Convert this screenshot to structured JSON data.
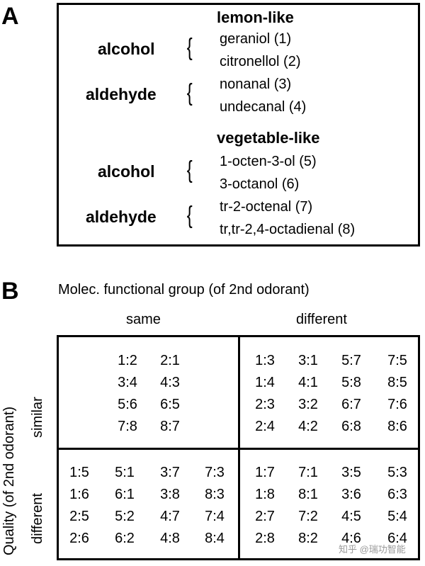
{
  "panelA": {
    "letter": "A",
    "groups": [
      {
        "heading": "lemon-like",
        "classes": [
          {
            "class": "alcohol",
            "compounds": [
              "geraniol (1)",
              "citronellol (2)"
            ]
          },
          {
            "class": "aldehyde",
            "compounds": [
              "nonanal (3)",
              "undecanal (4)"
            ]
          }
        ]
      },
      {
        "heading": "vegetable-like",
        "classes": [
          {
            "class": "alcohol",
            "compounds": [
              "1-octen-3-ol (5)",
              "3-octanol (6)"
            ]
          },
          {
            "class": "aldehyde",
            "compounds": [
              "tr-2-octenal (7)",
              "tr,tr-2,4-octadienal (8)"
            ]
          }
        ]
      }
    ],
    "brace": "{"
  },
  "panelB": {
    "letter": "B",
    "top_title": "Molec. functional group (of 2nd odorant)",
    "col_headers": [
      "same",
      "different"
    ],
    "left_title": "Quality (of 2nd odorant)",
    "row_headers": [
      "similar",
      "different"
    ],
    "cells": {
      "similar_same": [
        [
          "1:2",
          "2:1"
        ],
        [
          "3:4",
          "4:3"
        ],
        [
          "5:6",
          "6:5"
        ],
        [
          "7:8",
          "8:7"
        ]
      ],
      "similar_different": [
        [
          "1:3",
          "3:1",
          "5:7",
          "7:5"
        ],
        [
          "1:4",
          "4:1",
          "5:8",
          "8:5"
        ],
        [
          "2:3",
          "3:2",
          "6:7",
          "7:6"
        ],
        [
          "2:4",
          "4:2",
          "6:8",
          "8:6"
        ]
      ],
      "different_same": [
        [
          "1:5",
          "5:1",
          "3:7",
          "7:3"
        ],
        [
          "1:6",
          "6:1",
          "3:8",
          "8:3"
        ],
        [
          "2:5",
          "5:2",
          "4:7",
          "7:4"
        ],
        [
          "2:6",
          "6:2",
          "4:8",
          "8:4"
        ]
      ],
      "different_different": [
        [
          "1:7",
          "7:1",
          "3:5",
          "5:3"
        ],
        [
          "1:8",
          "8:1",
          "3:6",
          "6:3"
        ],
        [
          "2:7",
          "7:2",
          "4:5",
          "5:4"
        ],
        [
          "2:8",
          "8:2",
          "4:6",
          "6:4"
        ]
      ]
    }
  },
  "watermark": "知乎 @瑞功智能"
}
